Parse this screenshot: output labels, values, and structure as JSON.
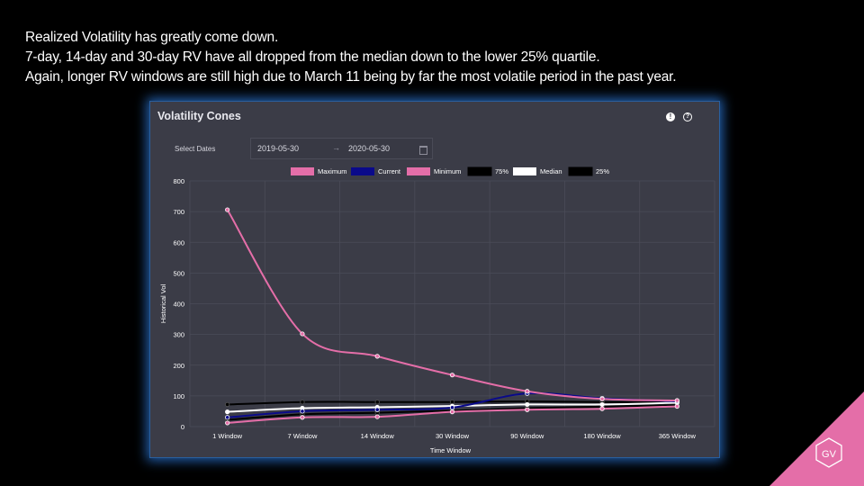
{
  "slide": {
    "lines": [
      "Realized Volatility has greatly come down.",
      "7-day, 14-day and 30-day RV have all dropped from the median down to the lower 25% quartile.",
      "Again, longer RV windows are still high due to March 11 being by far the most volatile period in the past year."
    ],
    "logo_text": "GV",
    "logo_color": "#e46ea8"
  },
  "panel": {
    "title": "Volatility Cones",
    "info_icon": "exclamation-circle-icon",
    "help_icon": "question-circle-icon",
    "select_dates_label": "Select Dates",
    "date_start": "2019-05-30",
    "date_arrow": "→",
    "date_end": "2020-05-30",
    "calendar_icon": "calendar-icon"
  },
  "chart_data": {
    "type": "line",
    "title": "",
    "xlabel": "Time Window",
    "ylabel": "Historical Vol",
    "categories": [
      "1 Window",
      "7 Window",
      "14 Window",
      "30 Window",
      "90 Window",
      "180 Window",
      "365 Window"
    ],
    "ylim": [
      0,
      800
    ],
    "yticks": [
      0,
      100,
      200,
      300,
      400,
      500,
      600,
      700,
      800
    ],
    "grid": true,
    "legend_position": "top-center",
    "series": [
      {
        "name": "Maximum",
        "color": "#e46ea8",
        "values": [
          706,
          302,
          229,
          168,
          115,
          90,
          85
        ]
      },
      {
        "name": "Current",
        "color": "#0a0a8a",
        "values": [
          30,
          50,
          55,
          62,
          108,
          92,
          82
        ]
      },
      {
        "name": "Minimum",
        "color": "#e46ea8",
        "values": [
          12,
          30,
          32,
          48,
          55,
          58,
          66
        ]
      },
      {
        "name": "75%",
        "color": "#000000",
        "values": [
          72,
          80,
          80,
          80,
          82,
          80,
          80
        ]
      },
      {
        "name": "Median",
        "color": "#ffffff",
        "values": [
          48,
          60,
          63,
          67,
          72,
          72,
          78
        ]
      },
      {
        "name": "25%",
        "color": "#000000",
        "values": [
          22,
          40,
          45,
          52,
          60,
          65,
          70
        ]
      }
    ]
  }
}
